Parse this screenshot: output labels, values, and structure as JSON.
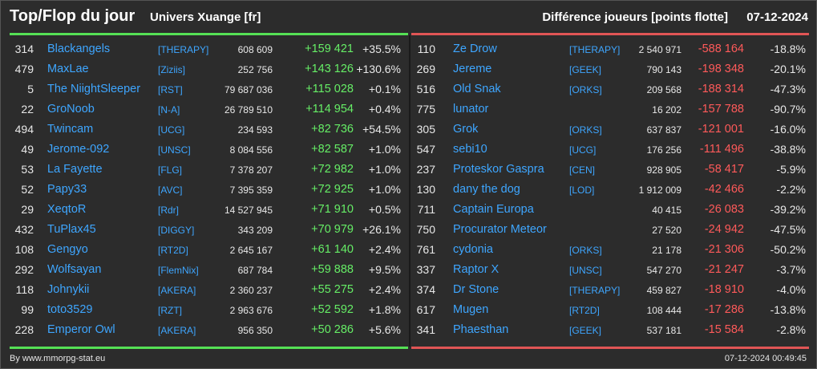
{
  "header": {
    "title": "Top/Flop du jour",
    "universe": "Univers Xuange [fr]",
    "metric": "Différence joueurs [points flotte]",
    "date": "07-12-2024"
  },
  "colors": {
    "top": "#55e055",
    "flop": "#e05555",
    "link": "#3ea6ff"
  },
  "top": [
    {
      "rank": "314",
      "name": "Blackangels",
      "guild": "[THERAPY]",
      "points": "608 609",
      "diff": "+159 421",
      "pct": "+35.5%"
    },
    {
      "rank": "479",
      "name": "MaxLae",
      "guild": "[Ziziis]",
      "points": "252 756",
      "diff": "+143 126",
      "pct": "+130.6%"
    },
    {
      "rank": "5",
      "name": "The NiightSleeper",
      "guild": "[RST]",
      "points": "79 687 036",
      "diff": "+115 028",
      "pct": "+0.1%"
    },
    {
      "rank": "22",
      "name": "GroNoob",
      "guild": "[N-A]",
      "points": "26 789 510",
      "diff": "+114 954",
      "pct": "+0.4%"
    },
    {
      "rank": "494",
      "name": "Twincam",
      "guild": "[UCG]",
      "points": "234 593",
      "diff": "+82 736",
      "pct": "+54.5%"
    },
    {
      "rank": "49",
      "name": "Jerome-092",
      "guild": "[UNSC]",
      "points": "8 084 556",
      "diff": "+82 587",
      "pct": "+1.0%"
    },
    {
      "rank": "53",
      "name": "La Fayette",
      "guild": "[FLG]",
      "points": "7 378 207",
      "diff": "+72 982",
      "pct": "+1.0%"
    },
    {
      "rank": "52",
      "name": "Papy33",
      "guild": "[AVC]",
      "points": "7 395 359",
      "diff": "+72 925",
      "pct": "+1.0%"
    },
    {
      "rank": "29",
      "name": "XeqtoR",
      "guild": "[Rdr]",
      "points": "14 527 945",
      "diff": "+71 910",
      "pct": "+0.5%"
    },
    {
      "rank": "432",
      "name": "TuPlax45",
      "guild": "[DIGGY]",
      "points": "343 209",
      "diff": "+70 979",
      "pct": "+26.1%"
    },
    {
      "rank": "108",
      "name": "Gengyo",
      "guild": "[RT2D]",
      "points": "2 645 167",
      "diff": "+61 140",
      "pct": "+2.4%"
    },
    {
      "rank": "292",
      "name": "Wolfsayan",
      "guild": "[FlemNix]",
      "points": "687 784",
      "diff": "+59 888",
      "pct": "+9.5%"
    },
    {
      "rank": "118",
      "name": "Johnykii",
      "guild": "[AKERA]",
      "points": "2 360 237",
      "diff": "+55 275",
      "pct": "+2.4%"
    },
    {
      "rank": "99",
      "name": "toto3529",
      "guild": "[RZT]",
      "points": "2 963 676",
      "diff": "+52 592",
      "pct": "+1.8%"
    },
    {
      "rank": "228",
      "name": "Emperor Owl",
      "guild": "[AKERA]",
      "points": "956 350",
      "diff": "+50 286",
      "pct": "+5.6%"
    }
  ],
  "flop": [
    {
      "rank": "110",
      "name": "Ze Drow",
      "guild": "[THERAPY]",
      "points": "2 540 971",
      "diff": "-588 164",
      "pct": "-18.8%"
    },
    {
      "rank": "269",
      "name": "Jereme",
      "guild": "[GEEK]",
      "points": "790 143",
      "diff": "-198 348",
      "pct": "-20.1%"
    },
    {
      "rank": "516",
      "name": "Old Snak",
      "guild": "[ORKS]",
      "points": "209 568",
      "diff": "-188 314",
      "pct": "-47.3%"
    },
    {
      "rank": "775",
      "name": "lunator",
      "guild": "",
      "points": "16 202",
      "diff": "-157 788",
      "pct": "-90.7%"
    },
    {
      "rank": "305",
      "name": "Grok",
      "guild": "[ORKS]",
      "points": "637 837",
      "diff": "-121 001",
      "pct": "-16.0%"
    },
    {
      "rank": "547",
      "name": "sebi10",
      "guild": "[UCG]",
      "points": "176 256",
      "diff": "-111 496",
      "pct": "-38.8%"
    },
    {
      "rank": "237",
      "name": "Proteskor Gaspra",
      "guild": "[CEN]",
      "points": "928 905",
      "diff": "-58 417",
      "pct": "-5.9%"
    },
    {
      "rank": "130",
      "name": "dany the dog",
      "guild": "[LOD]",
      "points": "1 912 009",
      "diff": "-42 466",
      "pct": "-2.2%"
    },
    {
      "rank": "711",
      "name": "Captain Europa",
      "guild": "",
      "points": "40 415",
      "diff": "-26 083",
      "pct": "-39.2%"
    },
    {
      "rank": "750",
      "name": "Procurator Meteor",
      "guild": "",
      "points": "27 520",
      "diff": "-24 942",
      "pct": "-47.5%"
    },
    {
      "rank": "761",
      "name": "cydonia",
      "guild": "[ORKS]",
      "points": "21 178",
      "diff": "-21 306",
      "pct": "-50.2%"
    },
    {
      "rank": "337",
      "name": "Raptor X",
      "guild": "[UNSC]",
      "points": "547 270",
      "diff": "-21 247",
      "pct": "-3.7%"
    },
    {
      "rank": "374",
      "name": "Dr Stone",
      "guild": "[THERAPY]",
      "points": "459 827",
      "diff": "-18 910",
      "pct": "-4.0%"
    },
    {
      "rank": "617",
      "name": "Mugen",
      "guild": "[RT2D]",
      "points": "108 444",
      "diff": "-17 286",
      "pct": "-13.8%"
    },
    {
      "rank": "341",
      "name": "Phaesthan",
      "guild": "[GEEK]",
      "points": "537 181",
      "diff": "-15 584",
      "pct": "-2.8%"
    }
  ],
  "footer": {
    "credit": "By www.mmorpg-stat.eu",
    "timestamp": "07-12-2024 00:49:45"
  }
}
